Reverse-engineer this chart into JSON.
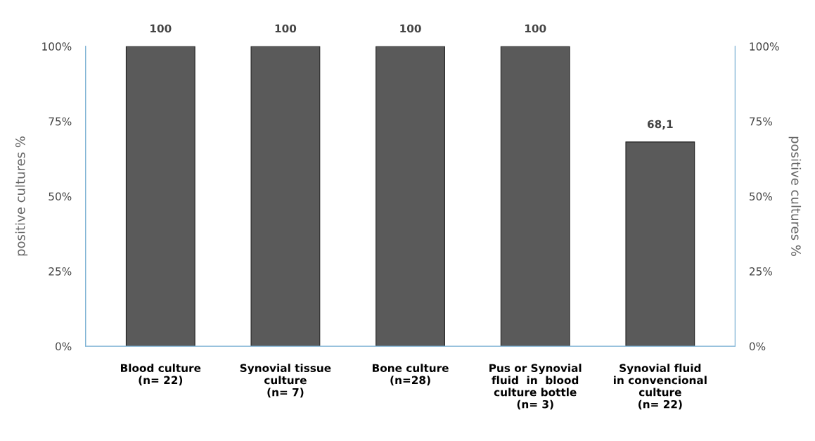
{
  "chart_data": {
    "type": "bar",
    "categories": [
      "Blood culture\n(n= 22)",
      "Synovial tissue\nculture\n(n= 7)",
      "Bone culture\n(n=28)",
      "Pus or Synovial\nfluid  in  blood\nculture bottle\n(n= 3)",
      "Synovial fluid\nin convencional\nculture\n(n= 22)"
    ],
    "values": [
      100,
      100,
      100,
      100,
      68.1
    ],
    "value_labels": [
      "100",
      "100",
      "100",
      "100",
      "68,1"
    ],
    "color": "#5a5a5a",
    "ylabel": "positive cultures %",
    "y2label": "positive cultures %",
    "ylim": [
      0,
      100
    ],
    "yticks": [
      {
        "value": 0,
        "label": "0%"
      },
      {
        "value": 25,
        "label": "25%"
      },
      {
        "value": 50,
        "label": "50%"
      },
      {
        "value": 75,
        "label": "75%"
      },
      {
        "value": 100,
        "label": "100%"
      }
    ],
    "y2lim": [
      0,
      100
    ],
    "y2ticks": [
      {
        "value": 0,
        "label": "0%"
      },
      {
        "value": 25,
        "label": "25%"
      },
      {
        "value": 50,
        "label": "50%"
      },
      {
        "value": 75,
        "label": "75%"
      },
      {
        "value": 100,
        "label": "100%"
      }
    ],
    "grid": false,
    "legend": false
  }
}
